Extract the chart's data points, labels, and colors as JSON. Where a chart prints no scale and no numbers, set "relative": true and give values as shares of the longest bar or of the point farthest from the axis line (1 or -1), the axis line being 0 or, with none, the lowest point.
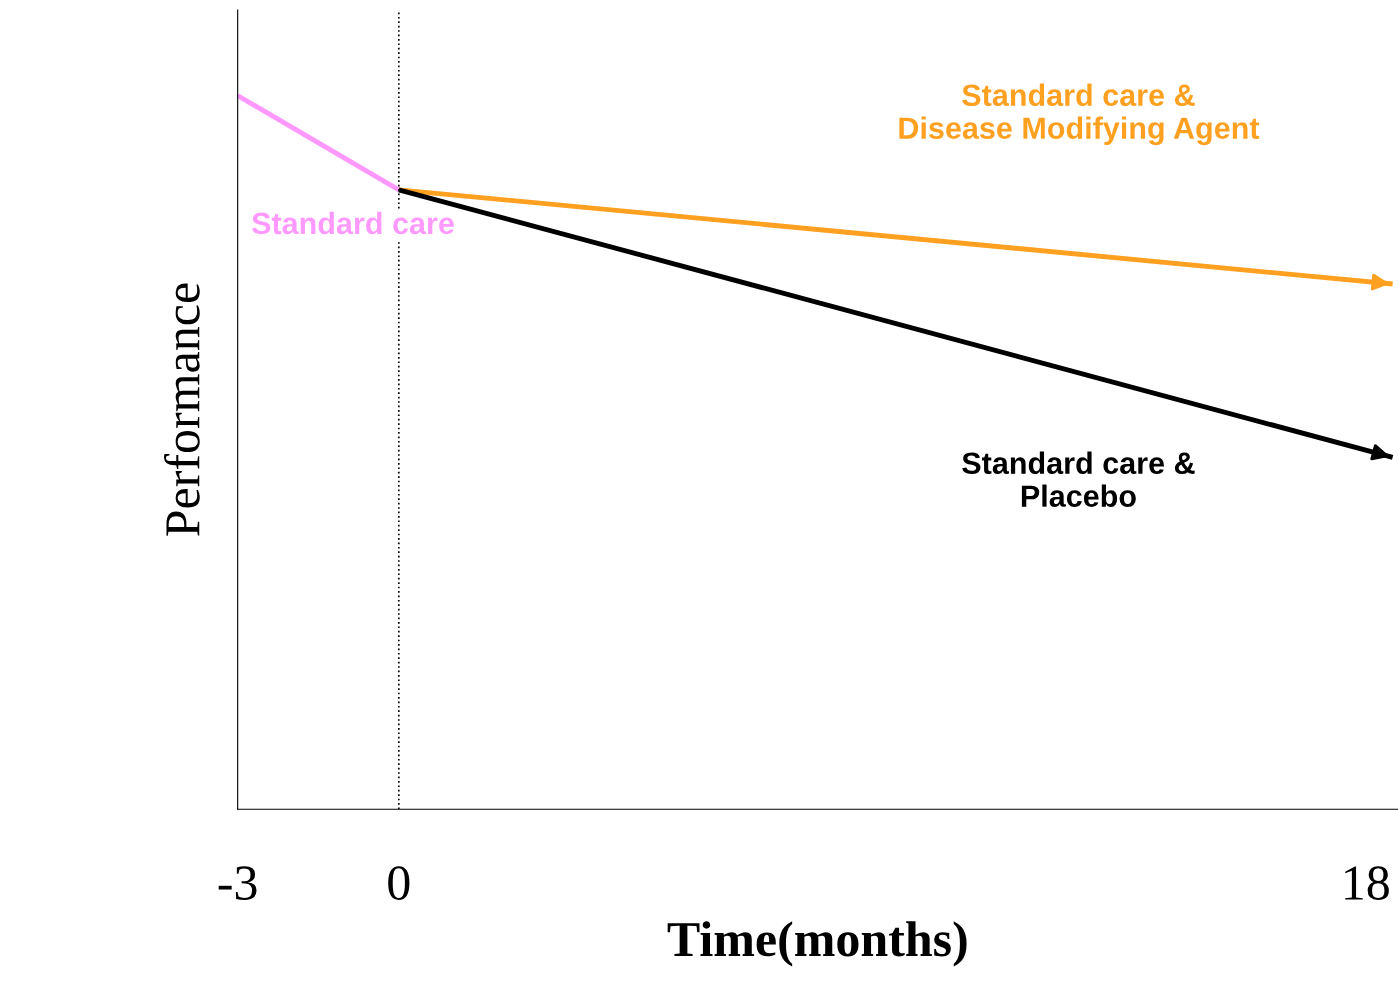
{
  "chart_data": {
    "type": "line",
    "relative": true,
    "xlabel": "Time(months)",
    "ylabel": "Performance",
    "xlim": [
      -3,
      18.6
    ],
    "xticks": [
      -3,
      0,
      18
    ],
    "grid": false,
    "legend": false,
    "marker": "none",
    "line_style": "solid",
    "series": [
      {
        "name": "Standard care",
        "color": "#ff99ff",
        "x": [
          -3,
          0
        ],
        "values": [
          1.0,
          0.868
        ]
      },
      {
        "name": "Standard care &\nDisease Modifying Agent",
        "color": "#ffa020",
        "x": [
          0,
          18.5
        ],
        "values": [
          0.868,
          0.736
        ]
      },
      {
        "name": "Standard care &\nPlacebo",
        "color": "#000000",
        "x": [
          0,
          18.5
        ],
        "values": [
          0.868,
          0.493
        ]
      }
    ],
    "ref_lines": [
      {
        "axis": "x",
        "value": 0,
        "color": "#000000",
        "line_style": "dotted"
      }
    ]
  }
}
